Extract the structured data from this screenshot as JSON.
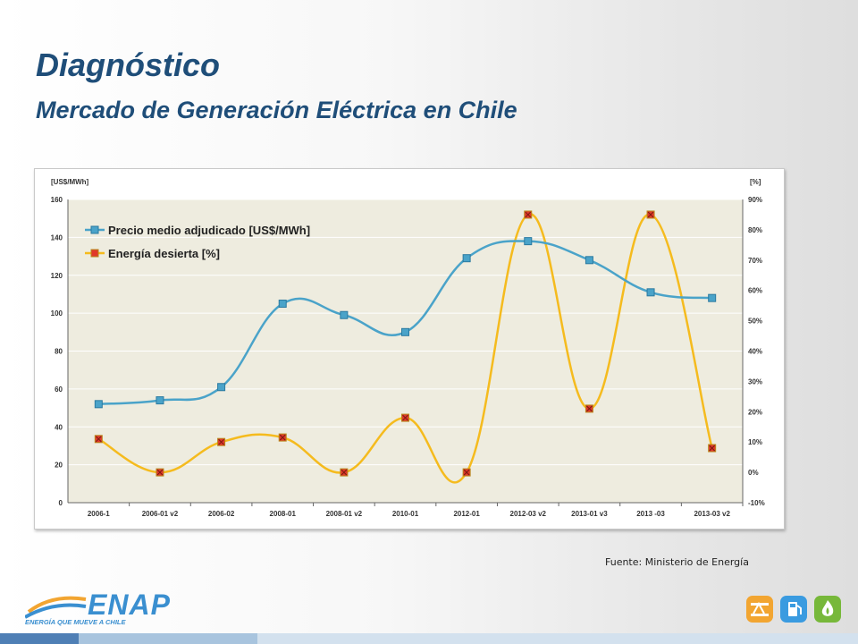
{
  "header": {
    "title": "Diagnóstico",
    "subtitle": "Mercado de Generación Eléctrica en Chile"
  },
  "source": "Fuente: Ministerio de Energía",
  "logo": {
    "name": "ENAP",
    "tagline": "ENERGÍA QUE MUEVE A CHILE"
  },
  "business_icons": [
    {
      "icon": "oil-pump-icon",
      "color": "#f2a531"
    },
    {
      "icon": "fuel-pump-icon",
      "color": "#3a9be0"
    },
    {
      "icon": "flame-icon",
      "color": "#77b83a"
    }
  ],
  "colors": {
    "price_line": "#4aa3c9",
    "energy_line": "#f5bb1e",
    "chart_bg": "#eeecdf",
    "marker_red": "#e0382b"
  },
  "chart_data": {
    "type": "line",
    "categories": [
      "2006-1",
      "2006-01 v2",
      "2006-02",
      "2008-01",
      "2008-01 v2",
      "2010-01",
      "2012-01",
      "2012-03 v2",
      "2013-01 v3",
      "2013 -03",
      "2013-03 v2"
    ],
    "series": [
      {
        "name": "Precio medio adjudicado [US$/MWh]",
        "axis": "left",
        "marker": "square",
        "values": [
          52,
          54,
          61,
          105,
          99,
          90,
          129,
          138,
          128,
          111,
          108
        ]
      },
      {
        "name": "Energía desierta [%]",
        "axis": "right",
        "marker": "x",
        "values": [
          11,
          0,
          10,
          11.5,
          0,
          18,
          0,
          85,
          21,
          85,
          8
        ]
      }
    ],
    "left_axis": {
      "label": "[US$/MWh]",
      "ylim": [
        0,
        160
      ],
      "ticks": [
        "0",
        "20",
        "40",
        "60",
        "80",
        "100",
        "120",
        "140",
        "160"
      ]
    },
    "right_axis": {
      "label": "[%]",
      "ylim": [
        -10,
        90
      ],
      "ticks": [
        "-10%",
        "0%",
        "10%",
        "20%",
        "30%",
        "40%",
        "50%",
        "60%",
        "70%",
        "80%",
        "90%"
      ]
    },
    "grid": true,
    "legend_position": "top-left"
  }
}
